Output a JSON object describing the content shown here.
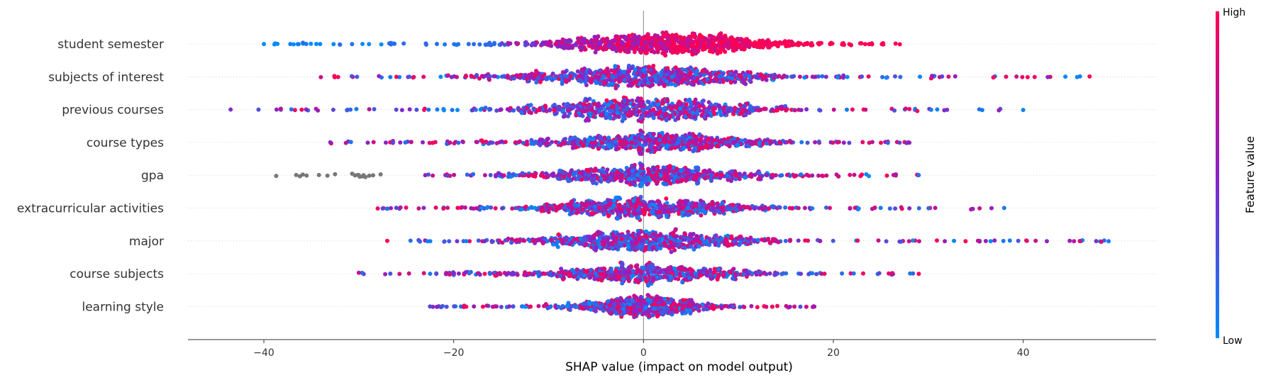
{
  "chart_data": {
    "type": "scatter",
    "subtype": "shap-beeswarm",
    "title": "",
    "xlabel": "SHAP value (impact on model output)",
    "xlim": [
      -48,
      54
    ],
    "xticks": [
      -40,
      -20,
      0,
      20,
      40
    ],
    "xtick_labels": [
      "−40",
      "−20",
      "0",
      "20",
      "40"
    ],
    "grid": false,
    "colorbar": {
      "title": "Feature value",
      "high_label": "High",
      "low_label": "Low",
      "high_color": "#ff0052",
      "mid_color": "#8a22c8",
      "low_color": "#008bfb",
      "missing_color": "#777777"
    },
    "features": [
      {
        "name": "student semester",
        "min": -40,
        "max": 27,
        "center": 3,
        "spread": 7,
        "count": 900,
        "low_side": "left",
        "missing_x": []
      },
      {
        "name": "subjects of interest",
        "min": -34,
        "max": 47,
        "center": 0,
        "spread": 8,
        "count": 800,
        "low_side": "none",
        "missing_x": []
      },
      {
        "name": "previous courses",
        "min": -43.5,
        "max": 40,
        "center": 0,
        "spread": 7,
        "count": 750,
        "low_side": "none",
        "missing_x": []
      },
      {
        "name": "course types",
        "min": -33,
        "max": 28,
        "center": 1,
        "spread": 7,
        "count": 750,
        "low_side": "none",
        "missing_x": []
      },
      {
        "name": "gpa",
        "min": -23,
        "max": 29,
        "center": 0,
        "spread": 6.5,
        "count": 720,
        "low_side": "none",
        "missing_x": [
          -38.7,
          -36.6,
          -36.2,
          -35.9,
          -35.5,
          -34.2,
          -33.3,
          -32.5,
          -30.7,
          -30.4,
          -30.1,
          -29.9,
          -29.6,
          -29.3,
          -28.9,
          -28.5,
          -27.7,
          -30.0,
          -29.5
        ]
      },
      {
        "name": "extracurricular activities",
        "min": -28,
        "max": 38,
        "center": 0,
        "spread": 6.5,
        "count": 720,
        "low_side": "none",
        "missing_x": []
      },
      {
        "name": "major",
        "min": -27,
        "max": 49,
        "center": 0,
        "spread": 7,
        "count": 720,
        "low_side": "none",
        "missing_x": []
      },
      {
        "name": "course subjects",
        "min": -30,
        "max": 29,
        "center": 0,
        "spread": 6.5,
        "count": 700,
        "low_side": "none",
        "missing_x": []
      },
      {
        "name": "learning style",
        "min": -22.5,
        "max": 18,
        "center": 0,
        "spread": 4,
        "count": 650,
        "low_side": "none",
        "missing_x": []
      }
    ]
  }
}
